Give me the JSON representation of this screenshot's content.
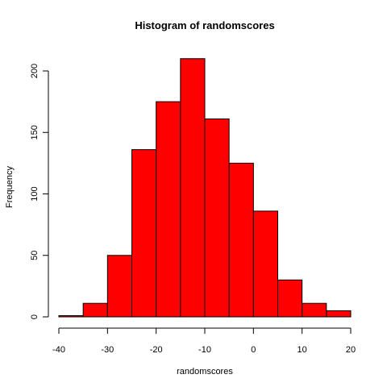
{
  "chart_data": {
    "type": "bar",
    "title": "Histogram of randomscores",
    "xlabel": "randomscores",
    "ylabel": "Frequency",
    "bins": [
      {
        "start": -40,
        "end": -35,
        "value": 1
      },
      {
        "start": -35,
        "end": -30,
        "value": 11
      },
      {
        "start": -30,
        "end": -25,
        "value": 50
      },
      {
        "start": -25,
        "end": -20,
        "value": 136
      },
      {
        "start": -20,
        "end": -15,
        "value": 175
      },
      {
        "start": -15,
        "end": -10,
        "value": 210
      },
      {
        "start": -10,
        "end": -5,
        "value": 161
      },
      {
        "start": -5,
        "end": 0,
        "value": 125
      },
      {
        "start": 0,
        "end": 5,
        "value": 86
      },
      {
        "start": 5,
        "end": 10,
        "value": 30
      },
      {
        "start": 10,
        "end": 15,
        "value": 11
      },
      {
        "start": 15,
        "end": 20,
        "value": 5
      }
    ],
    "xlim": [
      -40,
      20
    ],
    "ylim": [
      0,
      200
    ],
    "x_ticks": [
      -40,
      -30,
      -20,
      -10,
      0,
      10,
      20
    ],
    "y_ticks": [
      0,
      50,
      100,
      150,
      200
    ],
    "x_tick_labels": [
      "-40",
      "-30",
      "-20",
      "-10",
      "0",
      "10",
      "20"
    ],
    "y_tick_labels": [
      "0",
      "50",
      "100",
      "150",
      "200"
    ],
    "bar_color": "#ff0000",
    "border_color": "#000000",
    "grid": false
  }
}
